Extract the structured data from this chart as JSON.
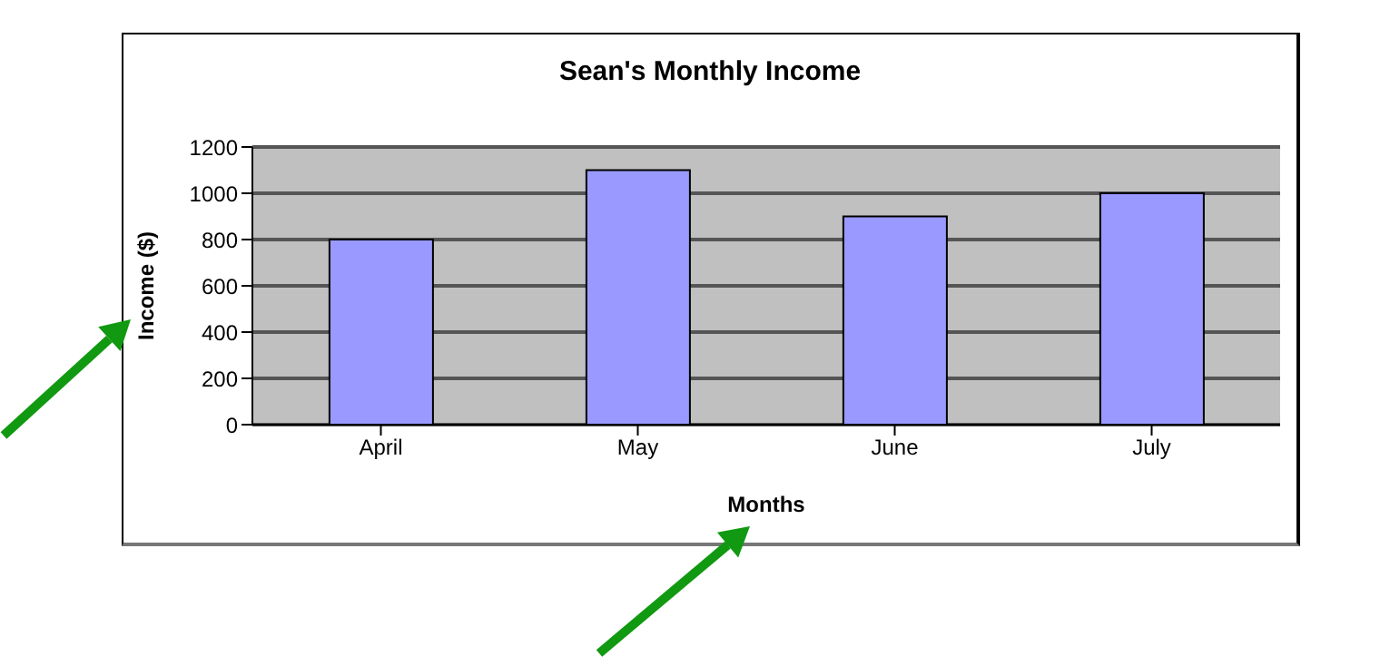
{
  "chart_data": {
    "type": "bar",
    "title": "Sean's Monthly Income",
    "xlabel": "Months",
    "ylabel": "Income ($)",
    "categories": [
      "April",
      "May",
      "June",
      "July"
    ],
    "values": [
      800,
      1100,
      900,
      1000
    ],
    "color": "#9999ff",
    "ylim": [
      0,
      1200
    ],
    "yticks": [
      0,
      200,
      400,
      600,
      800,
      1000,
      1200
    ],
    "grid": "y",
    "legend": false
  }
}
